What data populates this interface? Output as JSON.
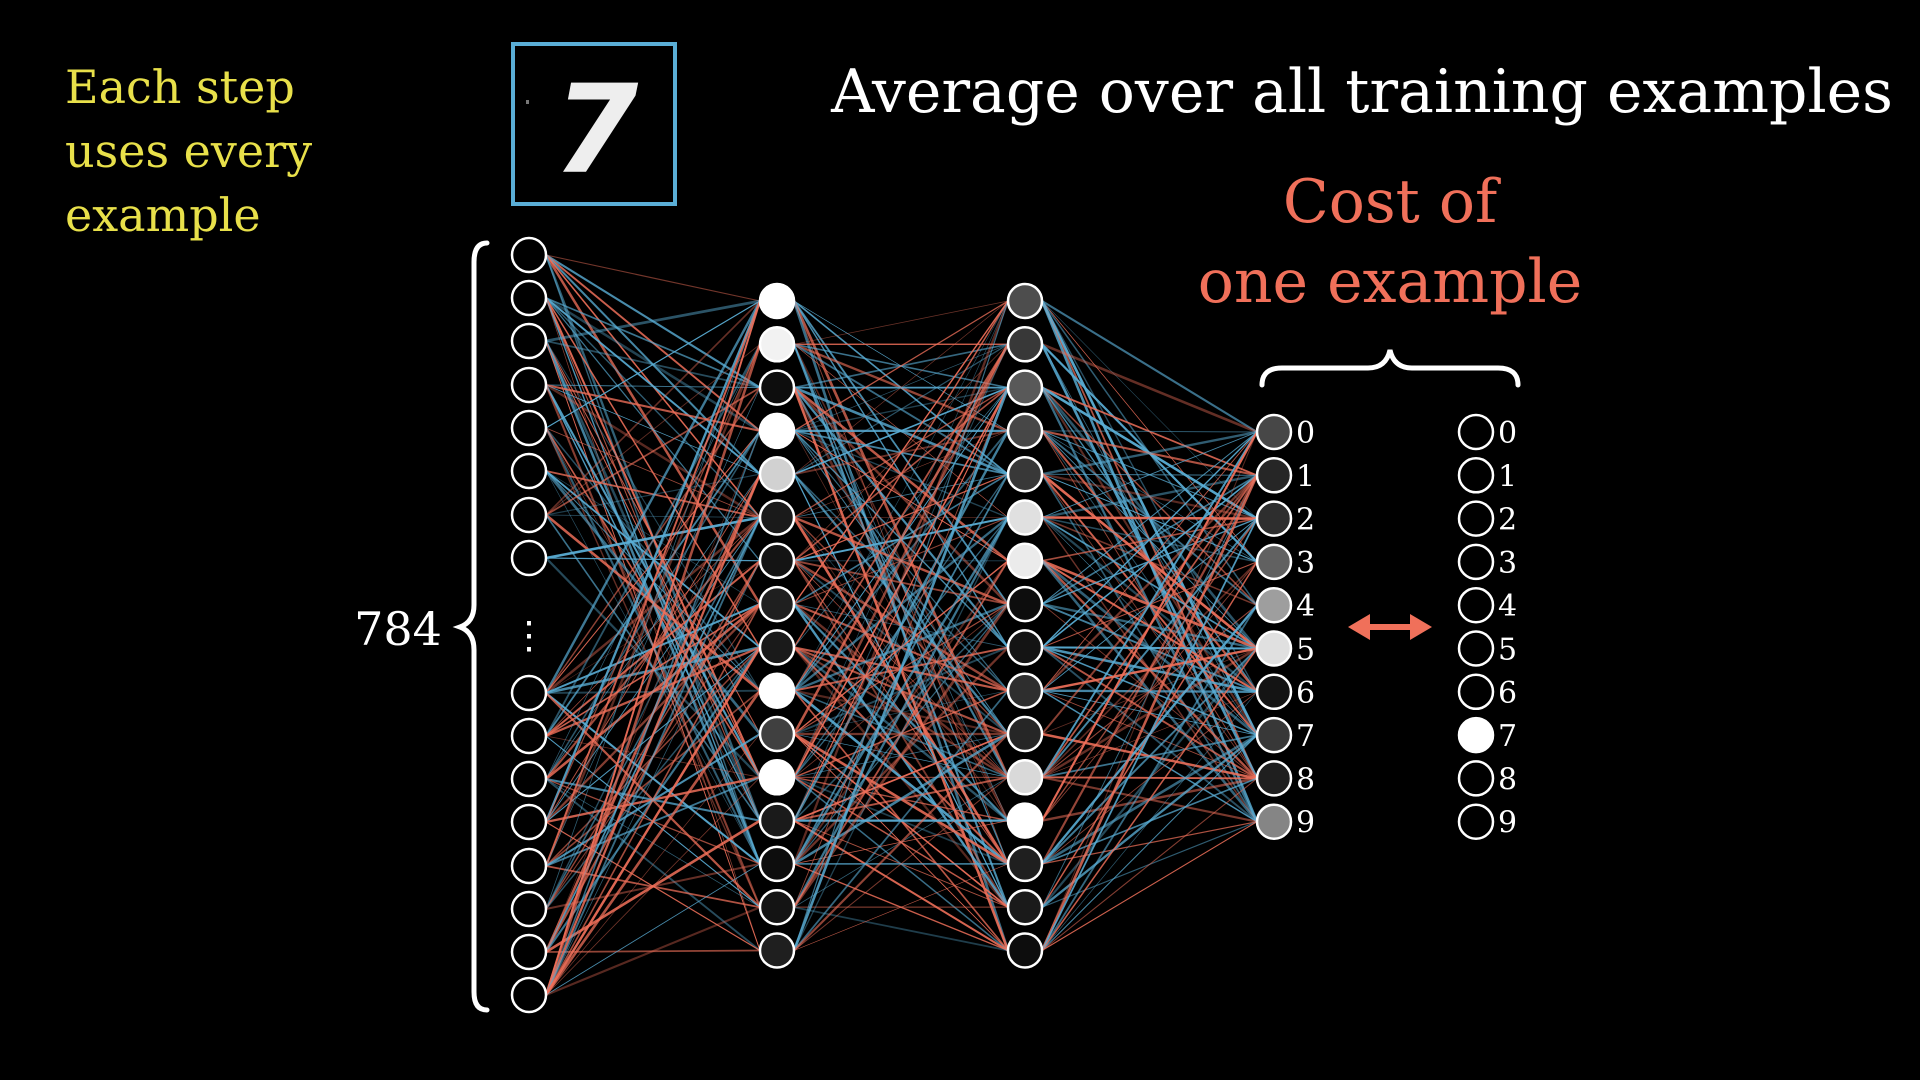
{
  "side_note": {
    "lines": [
      "Each step",
      "uses every",
      "example"
    ],
    "color": "#e8e04a"
  },
  "title": "Average over all training examples",
  "cost_label": {
    "lines": [
      "Cost of",
      "one example"
    ],
    "color": "#f0705a"
  },
  "input_count_label": "784",
  "input_ellipsis": "⋮",
  "sample_image": {
    "digit": "7",
    "frame_color": "#5aaed6"
  },
  "weight_colors": {
    "positive": "#5aaed6",
    "negative": "#f0705a"
  },
  "layers": {
    "input": {
      "top_activations": [
        0,
        0,
        0,
        0,
        0,
        0,
        0,
        0
      ],
      "bottom_activations": [
        0,
        0,
        0,
        0,
        0,
        0,
        0,
        0,
        0
      ]
    },
    "hidden1": {
      "activations": [
        1.0,
        0.95,
        0.05,
        1.0,
        0.82,
        0.1,
        0.08,
        0.12,
        0.1,
        1.0,
        0.25,
        1.0,
        0.1,
        0.05,
        0.08,
        0.12
      ]
    },
    "hidden2": {
      "activations": [
        0.3,
        0.22,
        0.35,
        0.28,
        0.22,
        0.88,
        0.92,
        0.05,
        0.08,
        0.18,
        0.15,
        0.85,
        1.0,
        0.12,
        0.1,
        0.05
      ]
    },
    "output": {
      "labels": [
        "0",
        "1",
        "2",
        "3",
        "4",
        "5",
        "6",
        "7",
        "8",
        "9"
      ],
      "activations": [
        0.28,
        0.15,
        0.18,
        0.38,
        0.62,
        0.88,
        0.08,
        0.22,
        0.12,
        0.52
      ]
    },
    "target": {
      "labels": [
        "0",
        "1",
        "2",
        "3",
        "4",
        "5",
        "6",
        "7",
        "8",
        "9"
      ],
      "activations": [
        0,
        0,
        0,
        0,
        0,
        0,
        0,
        1,
        0,
        0
      ]
    }
  },
  "compare_arrow": {
    "color": "#f0705a"
  }
}
